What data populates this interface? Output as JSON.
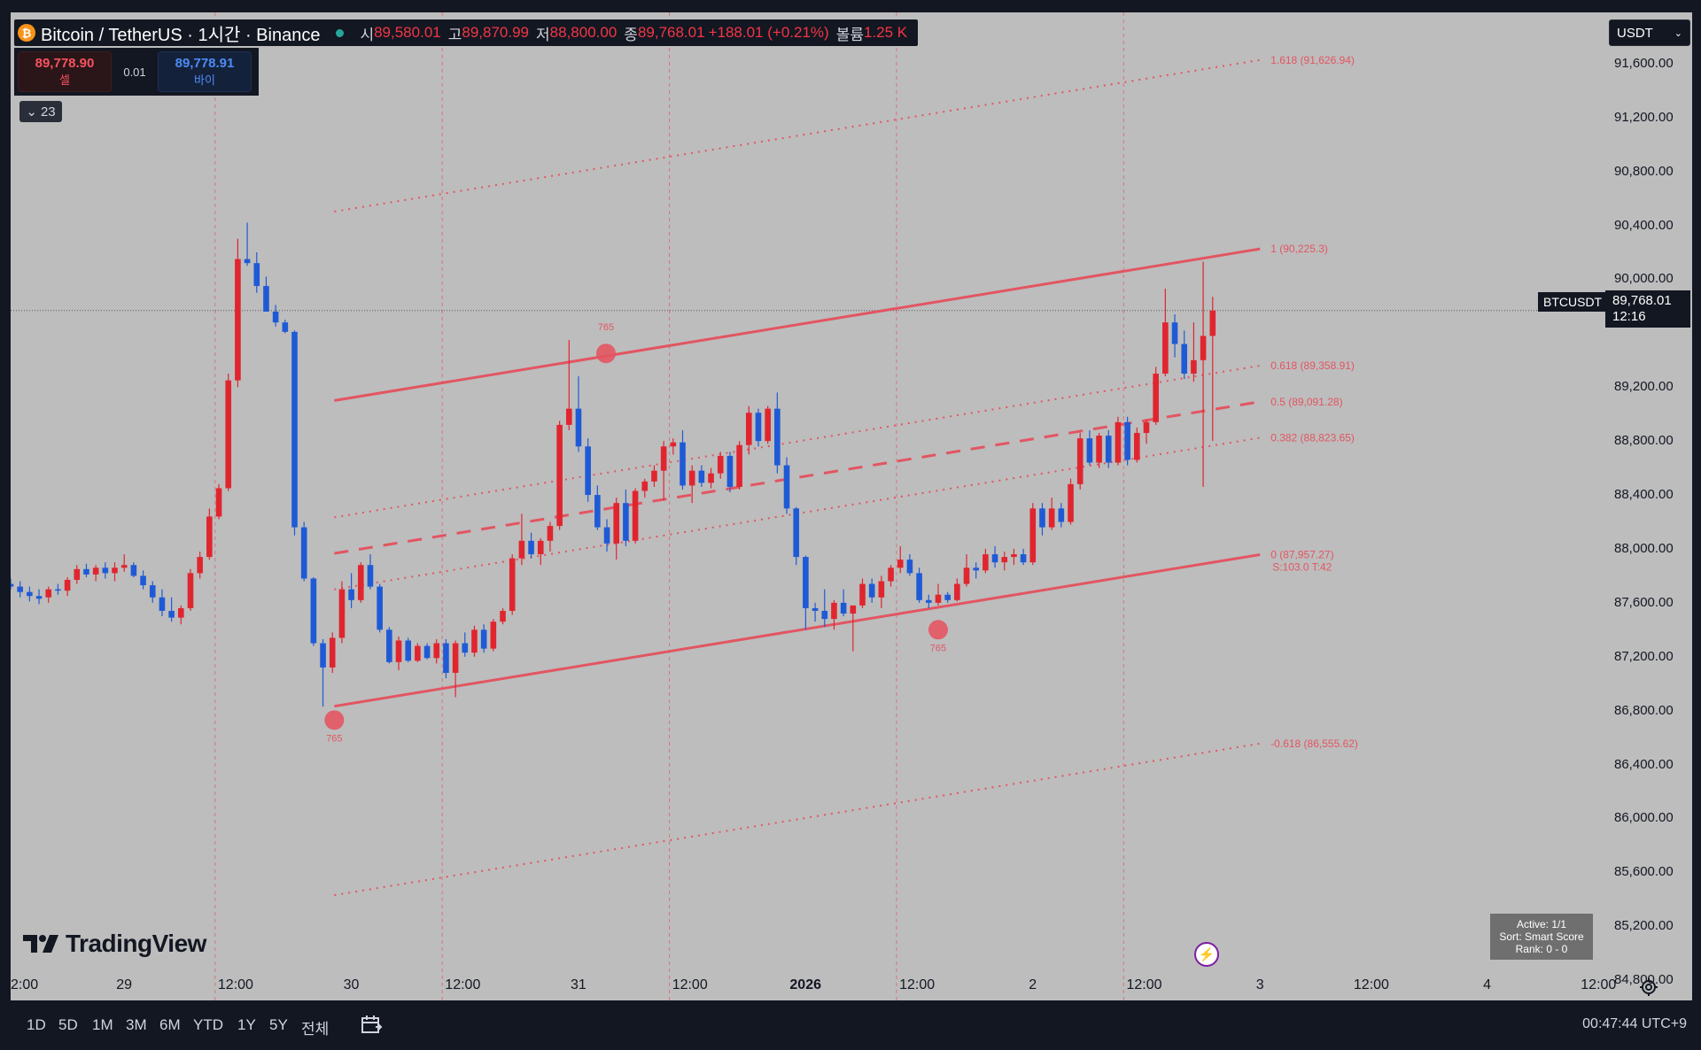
{
  "header": {
    "symbol": "Bitcoin / TetherUS · 1시간 · Binance",
    "open_label": "시",
    "open": "89,580.01",
    "high_label": "고",
    "high": "89,870.99",
    "low_label": "저",
    "low": "88,800.00",
    "close_label": "종",
    "close": "89,768.01",
    "change": "+188.01 (+0.21%)",
    "volume_label": "볼륨",
    "volume": "1.25 K"
  },
  "trade": {
    "sell_price": "89,778.90",
    "sell_label": "셀",
    "spread": "0.01",
    "buy_price": "89,778.91",
    "buy_label": "바이"
  },
  "indicator_toggle": {
    "count": "23"
  },
  "currency": "USDT",
  "last_price": {
    "symbol": "BTCUSDT",
    "price": "89,768.01",
    "countdown": "12:16"
  },
  "logo_text": "TradingView",
  "stats": {
    "line1": "Active: 1/1",
    "line2": "Sort: Smart Score",
    "line3": "Rank: 0 - 0"
  },
  "ranges": [
    "1D",
    "5D",
    "1M",
    "3M",
    "6M",
    "YTD",
    "1Y",
    "5Y",
    "전체"
  ],
  "clock": "00:47:44 UTC+9",
  "colors": {
    "up": "#e0252f",
    "down": "#1f5ad6",
    "channel": "#e35562",
    "background": "#bdbdbd"
  },
  "chart_data": {
    "type": "candlestick",
    "symbol": "BTCUSDT",
    "interval": "1h",
    "y_axis": {
      "ticks": [
        "91,600.00",
        "91,200.00",
        "90,800.00",
        "90,400.00",
        "90,000.00",
        "89,200.00",
        "88,800.00",
        "88,400.00",
        "88,000.00",
        "87,600.00",
        "87,200.00",
        "86,800.00",
        "86,400.00",
        "86,000.00",
        "85,600.00",
        "85,200.00",
        "84,800.00"
      ],
      "tick_values": [
        91600,
        91200,
        90800,
        90400,
        90000,
        89200,
        88800,
        88400,
        88000,
        87600,
        87200,
        86800,
        86400,
        86000,
        85600,
        85200,
        84800
      ],
      "range": [
        84650,
        91980
      ]
    },
    "x_axis": {
      "ticks": [
        "2:00",
        "29",
        "12:00",
        "30",
        "12:00",
        "31",
        "12:00",
        "2026",
        "12:00",
        "2",
        "12:00",
        "3",
        "12:00",
        "4",
        "12:00"
      ],
      "tick_hours": [
        0,
        12,
        24,
        36,
        48,
        60,
        72,
        84,
        96,
        108,
        120,
        132,
        144,
        156,
        168
      ],
      "range_hours": [
        0,
        168.3
      ]
    },
    "candles": [
      [
        0,
        87740,
        87780,
        87700,
        87720
      ],
      [
        1,
        87720,
        87760,
        87640,
        87680
      ],
      [
        2,
        87680,
        87720,
        87610,
        87650
      ],
      [
        3,
        87650,
        87700,
        87590,
        87630
      ],
      [
        4,
        87640,
        87720,
        87600,
        87700
      ],
      [
        5,
        87700,
        87740,
        87660,
        87690
      ],
      [
        6,
        87690,
        87790,
        87650,
        87770
      ],
      [
        7,
        87770,
        87880,
        87740,
        87850
      ],
      [
        8,
        87850,
        87890,
        87790,
        87810
      ],
      [
        9,
        87810,
        87880,
        87760,
        87860
      ],
      [
        10,
        87860,
        87900,
        87780,
        87820
      ],
      [
        11,
        87820,
        87900,
        87760,
        87860
      ],
      [
        12,
        87860,
        87960,
        87830,
        87880
      ],
      [
        13,
        87880,
        87900,
        87790,
        87800
      ],
      [
        14,
        87800,
        87840,
        87700,
        87730
      ],
      [
        15,
        87730,
        87760,
        87600,
        87640
      ],
      [
        16,
        87640,
        87700,
        87500,
        87540
      ],
      [
        17,
        87540,
        87640,
        87460,
        87490
      ],
      [
        18,
        87490,
        87580,
        87440,
        87560
      ],
      [
        19,
        87560,
        87850,
        87540,
        87820
      ],
      [
        20,
        87820,
        87980,
        87780,
        87940
      ],
      [
        21,
        87940,
        88300,
        87920,
        88240
      ],
      [
        22,
        88240,
        88480,
        88220,
        88450
      ],
      [
        23,
        88450,
        89300,
        88430,
        89250
      ],
      [
        24,
        89250,
        90300,
        89200,
        90150
      ],
      [
        25,
        90150,
        90420,
        90100,
        90120
      ],
      [
        26,
        90120,
        90200,
        89900,
        89950
      ],
      [
        27,
        89950,
        90020,
        89760,
        89760
      ],
      [
        28,
        89760,
        89810,
        89650,
        89680
      ],
      [
        29,
        89680,
        89700,
        89600,
        89610
      ],
      [
        30,
        89610,
        89620,
        88100,
        88160
      ],
      [
        31,
        88160,
        88200,
        87760,
        87780
      ],
      [
        32,
        87780,
        87790,
        87280,
        87300
      ],
      [
        33,
        87300,
        87330,
        86830,
        87120
      ],
      [
        34,
        87120,
        87380,
        87080,
        87340
      ],
      [
        35,
        87340,
        87760,
        87300,
        87700
      ],
      [
        36,
        87700,
        87820,
        87560,
        87620
      ],
      [
        37,
        87620,
        87900,
        87600,
        87880
      ],
      [
        38,
        87880,
        87960,
        87700,
        87720
      ],
      [
        39,
        87720,
        87740,
        87380,
        87400
      ],
      [
        40,
        87400,
        87420,
        87150,
        87160
      ],
      [
        41,
        87160,
        87350,
        87100,
        87320
      ],
      [
        42,
        87320,
        87340,
        87160,
        87170
      ],
      [
        43,
        87170,
        87300,
        87160,
        87280
      ],
      [
        44,
        87280,
        87300,
        87180,
        87190
      ],
      [
        45,
        87190,
        87330,
        87150,
        87300
      ],
      [
        46,
        87300,
        87330,
        87040,
        87080
      ],
      [
        47,
        87080,
        87320,
        86900,
        87300
      ],
      [
        48,
        87300,
        87380,
        87200,
        87230
      ],
      [
        49,
        87230,
        87430,
        87200,
        87400
      ],
      [
        50,
        87400,
        87440,
        87230,
        87260
      ],
      [
        51,
        87260,
        87480,
        87240,
        87460
      ],
      [
        52,
        87460,
        87560,
        87440,
        87540
      ],
      [
        53,
        87540,
        87960,
        87510,
        87930
      ],
      [
        54,
        87930,
        88260,
        87880,
        88060
      ],
      [
        55,
        88060,
        88120,
        87930,
        87960
      ],
      [
        56,
        87960,
        88080,
        87880,
        88060
      ],
      [
        57,
        88060,
        88200,
        87980,
        88170
      ],
      [
        58,
        88170,
        88950,
        88140,
        88920
      ],
      [
        59,
        88920,
        89550,
        88880,
        89040
      ],
      [
        60,
        89040,
        89280,
        88720,
        88760
      ],
      [
        61,
        88760,
        88820,
        88350,
        88400
      ],
      [
        62,
        88400,
        88470,
        88140,
        88160
      ],
      [
        63,
        88160,
        88220,
        87980,
        88040
      ],
      [
        64,
        88040,
        88380,
        87920,
        88340
      ],
      [
        65,
        88340,
        88440,
        88020,
        88060
      ],
      [
        66,
        88060,
        88450,
        88040,
        88430
      ],
      [
        67,
        88430,
        88520,
        88380,
        88500
      ],
      [
        68,
        88500,
        88620,
        88460,
        88580
      ],
      [
        69,
        88580,
        88800,
        88360,
        88760
      ],
      [
        70,
        88760,
        88820,
        88700,
        88790
      ],
      [
        71,
        88790,
        88880,
        88440,
        88470
      ],
      [
        72,
        88470,
        88620,
        88340,
        88580
      ],
      [
        73,
        88580,
        88620,
        88460,
        88490
      ],
      [
        74,
        88490,
        88600,
        88450,
        88560
      ],
      [
        75,
        88560,
        88720,
        88520,
        88690
      ],
      [
        76,
        88690,
        88720,
        88420,
        88460
      ],
      [
        77,
        88460,
        88800,
        88440,
        88770
      ],
      [
        78,
        88770,
        89060,
        88700,
        89010
      ],
      [
        79,
        89010,
        89040,
        88760,
        88800
      ],
      [
        80,
        88800,
        89060,
        88780,
        89040
      ],
      [
        81,
        89040,
        89160,
        88560,
        88620
      ],
      [
        82,
        88620,
        88680,
        88260,
        88300
      ],
      [
        83,
        88300,
        88310,
        87880,
        87940
      ],
      [
        84,
        87940,
        87950,
        87400,
        87560
      ],
      [
        85,
        87560,
        87600,
        87460,
        87540
      ],
      [
        86,
        87540,
        87700,
        87420,
        87480
      ],
      [
        87,
        87480,
        87620,
        87400,
        87600
      ],
      [
        88,
        87600,
        87700,
        87500,
        87520
      ],
      [
        89,
        87520,
        87580,
        87240,
        87580
      ],
      [
        90,
        87580,
        87780,
        87560,
        87740
      ],
      [
        91,
        87740,
        87780,
        87600,
        87640
      ],
      [
        92,
        87640,
        87800,
        87560,
        87760
      ],
      [
        93,
        87760,
        87880,
        87720,
        87860
      ],
      [
        94,
        87860,
        88020,
        87820,
        87920
      ],
      [
        95,
        87920,
        87960,
        87800,
        87820
      ],
      [
        96,
        87820,
        87860,
        87600,
        87620
      ],
      [
        97,
        87620,
        87660,
        87560,
        87600
      ],
      [
        98,
        87600,
        87740,
        87580,
        87660
      ],
      [
        99,
        87660,
        87680,
        87600,
        87620
      ],
      [
        100,
        87620,
        87780,
        87610,
        87740
      ],
      [
        101,
        87740,
        87960,
        87720,
        87860
      ],
      [
        102,
        87860,
        87900,
        87780,
        87840
      ],
      [
        103,
        87840,
        88000,
        87820,
        87960
      ],
      [
        104,
        87960,
        88020,
        87860,
        87900
      ],
      [
        105,
        87900,
        87980,
        87840,
        87940
      ],
      [
        106,
        87940,
        88000,
        87880,
        87960
      ],
      [
        107,
        87960,
        88000,
        87880,
        87900
      ],
      [
        108,
        87900,
        88340,
        87880,
        88300
      ],
      [
        109,
        88300,
        88340,
        88100,
        88160
      ],
      [
        110,
        88160,
        88380,
        88140,
        88300
      ],
      [
        111,
        88300,
        88340,
        88160,
        88200
      ],
      [
        112,
        88200,
        88520,
        88180,
        88480
      ],
      [
        113,
        88480,
        88860,
        88440,
        88820
      ],
      [
        114,
        88820,
        88880,
        88620,
        88640
      ],
      [
        115,
        88640,
        88860,
        88600,
        88840
      ],
      [
        116,
        88840,
        88880,
        88600,
        88640
      ],
      [
        117,
        88640,
        88980,
        88620,
        88940
      ],
      [
        118,
        88940,
        88980,
        88620,
        88660
      ],
      [
        119,
        88660,
        88900,
        88640,
        88860
      ],
      [
        120,
        88860,
        88960,
        88780,
        88940
      ],
      [
        121,
        88940,
        89350,
        88920,
        89300
      ],
      [
        122,
        89300,
        89930,
        89280,
        89680
      ],
      [
        123,
        89680,
        89740,
        89420,
        89520
      ],
      [
        124,
        89520,
        89620,
        89260,
        89300
      ],
      [
        125,
        89300,
        89680,
        89240,
        89400
      ],
      [
        126,
        89400,
        90130,
        88460,
        89580
      ],
      [
        127,
        89580,
        89870,
        88800,
        89768
      ]
    ],
    "channel": {
      "levels": [
        {
          "fib": "1.618",
          "value": 91626.94,
          "label": "1.618 (91,626.94)",
          "style": "dotted"
        },
        {
          "fib": "1",
          "value": 90225.3,
          "label": "1 (90,225.3)",
          "style": "solid"
        },
        {
          "fib": "0.618",
          "value": 89358.91,
          "label": "0.618 (89,358.91)",
          "style": "dotted"
        },
        {
          "fib": "0.5",
          "value": 89091.28,
          "label": "0.5 (89,091.28)",
          "style": "dashed"
        },
        {
          "fib": "0.382",
          "value": 88823.65,
          "label": "0.382 (88,823.65)",
          "style": "dotted"
        },
        {
          "fib": "0",
          "value": 87957.27,
          "label": "0 (87,957.27)",
          "style": "solid"
        },
        {
          "fib": "-0.618",
          "value": 86555.62,
          "label": "-0.618 (86,555.62)",
          "style": "dotted"
        }
      ],
      "start_hour": 34.2,
      "end_hour": 132,
      "slope_per_hour": 11.5,
      "note_label": "S:103.0 T:42",
      "pivots": [
        {
          "hour": 34.2,
          "price": 86730,
          "label": "765",
          "label_pos": "below"
        },
        {
          "hour": 62.9,
          "price": 89450,
          "label": "765",
          "label_pos": "above"
        },
        {
          "hour": 98,
          "price": 87400,
          "label": "765",
          "label_pos": "below"
        }
      ]
    },
    "vertical_lines_hours": [
      21.6,
      45.6,
      69.6,
      93.6,
      117.6
    ],
    "last_price_line": 89768.01
  }
}
